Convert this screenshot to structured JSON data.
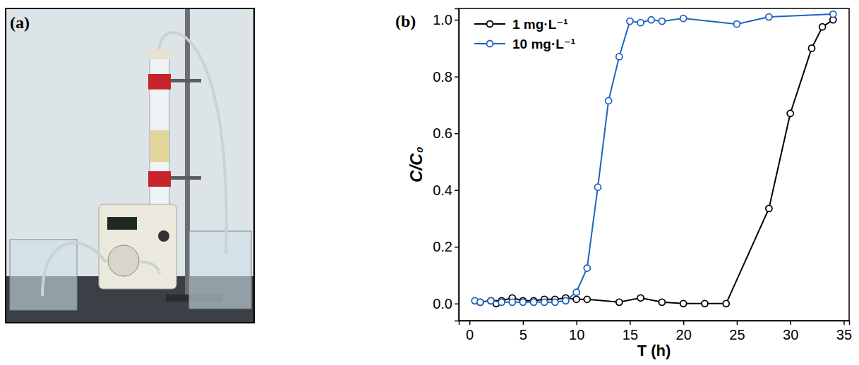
{
  "panel_labels": [
    "(a)",
    "(b)"
  ],
  "chart_data": {
    "type": "line",
    "x_label": "T (h)",
    "y_label": "C/C₀",
    "xlim": [
      -1,
      35.5
    ],
    "xticks": [
      0,
      5,
      10,
      15,
      20,
      25,
      30,
      35
    ],
    "ylim": [
      -0.06,
      1.04
    ],
    "yticks": [
      {
        "value": 0,
        "label": "0.0"
      },
      0.2,
      0.4,
      0.6,
      0.8,
      {
        "value": 1,
        "label": "1.0"
      }
    ],
    "grid": false,
    "legend": "upper left",
    "series": [
      {
        "name": "1 mg·L⁻¹",
        "color": "#000000",
        "marker": "circle-open",
        "line_style": "solid",
        "x": [
          1,
          2,
          2.5,
          3,
          4,
          5,
          6,
          7,
          8,
          9,
          10,
          11,
          14,
          16,
          18,
          20,
          22,
          24,
          28,
          30,
          32,
          33,
          34
        ],
        "values": [
          0.005,
          0.01,
          0.0,
          0.01,
          0.02,
          0.01,
          0.01,
          0.015,
          0.015,
          0.02,
          0.015,
          0.015,
          0.005,
          0.02,
          0.005,
          0.0,
          0.0,
          0.0,
          0.335,
          0.67,
          0.9,
          0.975,
          1.0
        ]
      },
      {
        "name": "10 mg·L⁻¹",
        "color": "#1f63c0",
        "marker": "circle-open",
        "line_style": "solid",
        "x": [
          0.5,
          1,
          2,
          3,
          4,
          5,
          6,
          7,
          8,
          9,
          10,
          11,
          12,
          13,
          14,
          15,
          16,
          17,
          18,
          20,
          25,
          28,
          34
        ],
        "values": [
          0.01,
          0.005,
          0.01,
          0.005,
          0.005,
          0.005,
          0.005,
          0.005,
          0.005,
          0.01,
          0.04,
          0.125,
          0.41,
          0.715,
          0.87,
          0.995,
          0.99,
          1.0,
          0.995,
          1.005,
          0.985,
          1.01,
          1.02
        ]
      }
    ]
  }
}
